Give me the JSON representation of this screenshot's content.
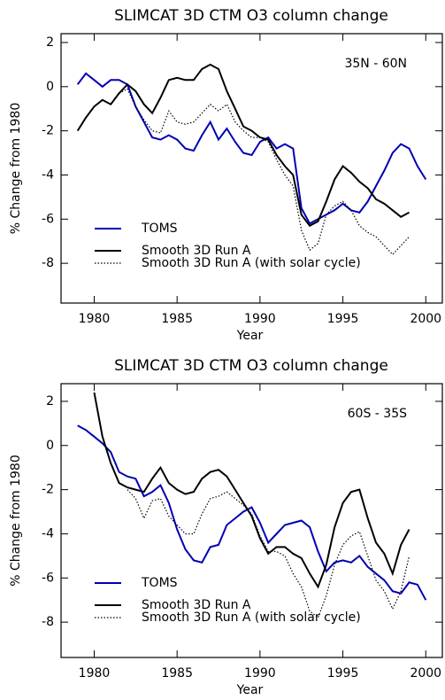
{
  "chart_data": [
    {
      "type": "line",
      "title": "SLIMCAT 3D CTM O3 column change",
      "annotation": "35N - 60N",
      "xlabel": "Year",
      "ylabel": "% Change from 1980",
      "xlim": [
        1978,
        2001
      ],
      "xticks": [
        1980,
        1985,
        1990,
        1995,
        2000
      ],
      "ylim": [
        -9.8,
        2.4
      ],
      "yticks": [
        -8,
        -6,
        -4,
        -2,
        0,
        2
      ],
      "legend_position": "lower left",
      "x": [
        1979,
        1979.5,
        1980,
        1980.5,
        1981,
        1981.5,
        1982,
        1982.5,
        1983,
        1983.5,
        1984,
        1984.5,
        1985,
        1985.5,
        1986,
        1986.5,
        1987,
        1987.5,
        1988,
        1988.5,
        1989,
        1989.5,
        1990,
        1990.5,
        1991,
        1991.5,
        1992,
        1992.5,
        1993,
        1993.5,
        1994,
        1994.5,
        1995,
        1995.5,
        1996,
        1996.5,
        1997,
        1997.5,
        1998,
        1998.5,
        1999,
        1999.5,
        2000
      ],
      "series": [
        {
          "name": "TOMS",
          "color": "#0000b4",
          "dash": "solid",
          "values": [
            0.1,
            0.6,
            0.3,
            0,
            0.3,
            0.3,
            0.1,
            -0.9,
            -1.6,
            -2.3,
            -2.4,
            -2.2,
            -2.4,
            -2.8,
            -2.9,
            -2.2,
            -1.6,
            -2.4,
            -1.9,
            -2.5,
            -3.0,
            -3.1,
            -2.5,
            -2.3,
            -2.8,
            -2.6,
            -2.8,
            -5.5,
            -6.2,
            -6.0,
            -5.8,
            -5.6,
            -5.3,
            -5.6,
            -5.7,
            -5.2,
            -4.5,
            -3.8,
            -3.0,
            -2.6,
            -2.8,
            -3.6,
            -4.2
          ]
        },
        {
          "name": "Smooth 3D Run A",
          "color": "#000000",
          "dash": "solid",
          "values": [
            -2.0,
            -1.4,
            -0.9,
            -0.6,
            -0.8,
            -0.3,
            0.1,
            -0.2,
            -0.8,
            -1.2,
            -0.5,
            0.3,
            0.4,
            0.3,
            0.3,
            0.8,
            1.0,
            0.8,
            -0.2,
            -1.0,
            -1.8,
            -2.0,
            -2.3,
            -2.4,
            -3.1,
            -3.6,
            -4.0,
            -5.8,
            -6.3,
            -6.1,
            -5.2,
            -4.2,
            -3.6,
            -3.9,
            -4.3,
            -4.6,
            -5.1,
            -5.3,
            -5.6,
            -5.9,
            -5.7,
            null,
            null
          ]
        },
        {
          "name": "Smooth 3D Run A (with solar cycle)",
          "color": "#000000",
          "dash": "dotted",
          "values": [
            null,
            null,
            null,
            null,
            null,
            -0.3,
            -0.1,
            -0.9,
            -1.5,
            -2.0,
            -2.1,
            -1.1,
            -1.6,
            -1.7,
            -1.6,
            -1.2,
            -0.8,
            -1.1,
            -0.8,
            -1.6,
            -2.0,
            -2.3,
            -2.3,
            -2.5,
            -3.3,
            -4.0,
            -4.5,
            -6.5,
            -7.4,
            -7.1,
            -5.8,
            -5.4,
            -5.2,
            -5.6,
            -6.3,
            -6.6,
            -6.8,
            -7.2,
            -7.6,
            -7.2,
            -6.8,
            null,
            null
          ]
        }
      ]
    },
    {
      "type": "line",
      "title": "SLIMCAT 3D CTM O3 column change",
      "annotation": "60S - 35S",
      "xlabel": "Year",
      "ylabel": "% Change from 1980",
      "xlim": [
        1978,
        2001
      ],
      "xticks": [
        1980,
        1985,
        1990,
        1995,
        2000
      ],
      "ylim": [
        -9.6,
        2.8
      ],
      "yticks": [
        -8,
        -6,
        -4,
        -2,
        0,
        2
      ],
      "legend_position": "lower left",
      "x": [
        1979,
        1979.5,
        1980,
        1980.5,
        1981,
        1981.5,
        1982,
        1982.5,
        1983,
        1983.5,
        1984,
        1984.5,
        1985,
        1985.5,
        1986,
        1986.5,
        1987,
        1987.5,
        1988,
        1988.5,
        1989,
        1989.5,
        1990,
        1990.5,
        1991,
        1991.5,
        1992,
        1992.5,
        1993,
        1993.5,
        1994,
        1994.5,
        1995,
        1995.5,
        1996,
        1996.5,
        1997,
        1997.5,
        1998,
        1998.5,
        1999,
        1999.5,
        2000
      ],
      "series": [
        {
          "name": "TOMS",
          "color": "#0000b4",
          "dash": "solid",
          "values": [
            0.9,
            0.7,
            0.4,
            0.1,
            -0.3,
            -1.2,
            -1.4,
            -1.5,
            -2.3,
            -2.1,
            -1.8,
            -2.6,
            -3.8,
            -4.7,
            -5.2,
            -5.3,
            -4.6,
            -4.5,
            -3.6,
            -3.3,
            -3.0,
            -2.8,
            -3.5,
            -4.4,
            -4.0,
            -3.6,
            -3.5,
            -3.4,
            -3.7,
            -4.8,
            -5.7,
            -5.3,
            -5.2,
            -5.3,
            -5.0,
            -5.5,
            -5.8,
            -6.1,
            -6.6,
            -6.7,
            -6.2,
            -6.3,
            -7.0
          ]
        },
        {
          "name": "Smooth 3D Run A",
          "color": "#000000",
          "dash": "solid",
          "values": [
            null,
            null,
            2.4,
            0.4,
            -0.8,
            -1.7,
            -1.9,
            -2.0,
            -2.1,
            -1.5,
            -1.0,
            -1.7,
            -2.0,
            -2.2,
            -2.1,
            -1.5,
            -1.2,
            -1.1,
            -1.4,
            -2.0,
            -2.6,
            -3.2,
            -4.2,
            -4.9,
            -4.6,
            -4.6,
            -4.9,
            -5.1,
            -5.8,
            -6.4,
            -5.4,
            -3.7,
            -2.6,
            -2.1,
            -2.0,
            -3.3,
            -4.4,
            -4.9,
            -5.8,
            -4.5,
            -3.8,
            null,
            null
          ]
        },
        {
          "name": "Smooth 3D Run A (with solar cycle)",
          "color": "#000000",
          "dash": "dotted",
          "values": [
            null,
            null,
            null,
            null,
            null,
            null,
            -2.0,
            -2.4,
            -3.3,
            -2.5,
            -2.4,
            -3.2,
            -3.6,
            -4.0,
            -4.0,
            -3.1,
            -2.4,
            -2.3,
            -2.1,
            -2.4,
            -2.7,
            -3.1,
            -4.1,
            -4.8,
            -4.8,
            -5.0,
            -5.8,
            -6.4,
            -7.5,
            -7.8,
            -6.8,
            -5.4,
            -4.5,
            -4.1,
            -3.9,
            -5.0,
            -6.1,
            -6.6,
            -7.4,
            -6.6,
            -5.0,
            null,
            null
          ]
        }
      ]
    }
  ]
}
